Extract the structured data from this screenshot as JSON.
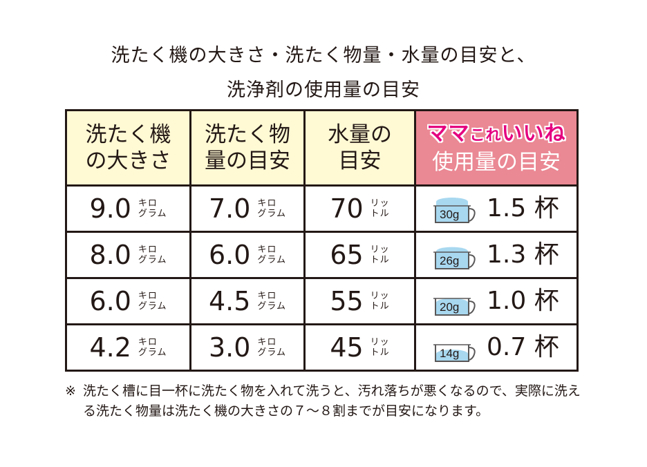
{
  "title_line1": "洗たく機の大きさ・洗たく物量・水量の目安と、",
  "title_line2": "洗浄剤の使用量の目安",
  "headers": {
    "machine": [
      "洗たく機",
      "の大きさ"
    ],
    "laundry": [
      "洗たく物",
      "量の目安"
    ],
    "water": [
      "水量の",
      "目安"
    ],
    "brand_a": "ママ",
    "brand_b": "これ",
    "brand_c": "いいね",
    "usage": "使用量の目安"
  },
  "units": {
    "kilo_top": "キロ",
    "kilo_bottom": "グラム",
    "liter_top": "リッ",
    "liter_bottom": "トル"
  },
  "rows": [
    {
      "machine": "9.0",
      "laundry": "7.0",
      "water": "70",
      "grams": "30g",
      "cups": "1.5 杯",
      "fill": 1.0
    },
    {
      "machine": "8.0",
      "laundry": "6.0",
      "water": "65",
      "grams": "26g",
      "cups": "1.3 杯",
      "fill": 0.87
    },
    {
      "machine": "6.0",
      "laundry": "4.5",
      "water": "55",
      "grams": "20g",
      "cups": "1.0 杯",
      "fill": 0.67
    },
    {
      "machine": "4.2",
      "laundry": "3.0",
      "water": "45",
      "grams": "14g",
      "cups": "0.7 杯",
      "fill": 0.47
    }
  ],
  "note": {
    "mark": "※",
    "text": "洗たく槽に目一杯に洗たく物を入れて洗うと、汚れ落ちが悪くなるので、実際に洗える洗たく物量は洗たく機の大きさの７〜８割までが目安になります。"
  },
  "colors": {
    "header_bg": "#fff9d4",
    "pink_header_bg": "#ea8893",
    "brand_text": "#e4007f",
    "cup_fill": "#a8d8f0"
  }
}
